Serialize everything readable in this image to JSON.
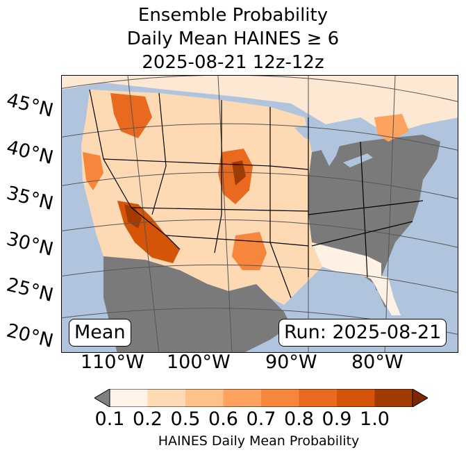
{
  "title": {
    "line1": "Ensemble Probability",
    "line2": "Daily Mean HAINES ≥ 6",
    "line3": "2025-08-21 12z-12z"
  },
  "map": {
    "lat_labels": [
      "45°N",
      "40°N",
      "35°N",
      "30°N",
      "25°N",
      "20°N"
    ],
    "lon_labels": [
      "110°W",
      "100°W",
      "90°W",
      "80°W"
    ],
    "mean_box": "Mean",
    "run_box": "Run: 2025-08-21",
    "colors": {
      "ocean": "#b0c4de",
      "no_data_land": "#7a7a7a",
      "low": "#fff1e4"
    }
  },
  "colorbar": {
    "tick_labels": [
      "0.1",
      "0.2",
      "0.5",
      "0.6",
      "0.7",
      "0.8",
      "0.9",
      "1.0"
    ],
    "colors": [
      "#fff2e6",
      "#fdd9b4",
      "#fdc18a",
      "#fda35f",
      "#f5863c",
      "#e96a1e",
      "#d45408",
      "#a33a00"
    ],
    "under_color": "#808080",
    "over_color": "#7f2704",
    "label": "HAINES Daily Mean Probability"
  }
}
